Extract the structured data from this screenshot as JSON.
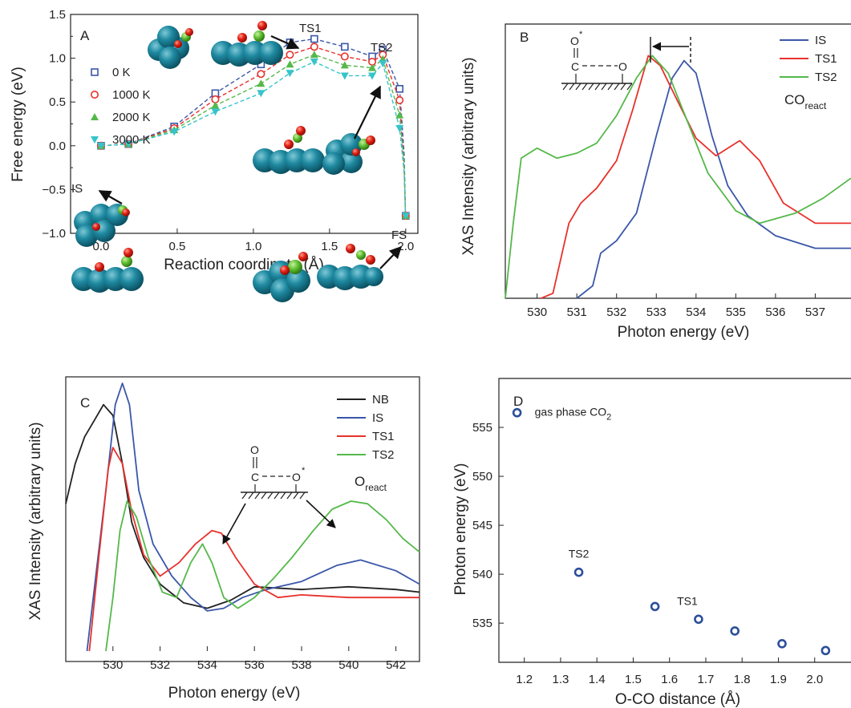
{
  "colors": {
    "blue": "#3a57a8",
    "red": "#e8312b",
    "green": "#55b84a",
    "cyan": "#36c4c9",
    "black": "#222222",
    "navy_marker": "#2b4f9a"
  },
  "chart_data": [
    {
      "id": "A",
      "type": "line",
      "panel_label": "A",
      "xlabel": "Reaction coordinate (Å)",
      "ylabel": "Free energy (eV)",
      "xlim": [
        -0.2,
        2.08
      ],
      "ylim": [
        -1.0,
        1.5
      ],
      "xticks": [
        "0.0",
        "0.5",
        "1.0",
        "1.5",
        "2.0"
      ],
      "yticks": [
        "−1.0",
        "−0.5",
        "0.0",
        "0.5",
        "1.0",
        "1.5"
      ],
      "x": [
        0.0,
        0.18,
        0.48,
        0.75,
        1.05,
        1.24,
        1.4,
        1.6,
        1.78,
        1.85,
        1.96,
        1.99,
        1.995,
        1.998,
        2.0
      ],
      "series": [
        {
          "name": "0 K",
          "marker": "square",
          "color": "blue",
          "values": [
            0.0,
            0.02,
            0.22,
            0.6,
            0.93,
            1.18,
            1.22,
            1.13,
            1.02,
            1.1,
            0.65,
            -0.1,
            -0.5,
            -0.75,
            -0.8
          ]
        },
        {
          "name": "1000 K",
          "marker": "circle",
          "color": "red",
          "values": [
            0.0,
            0.02,
            0.2,
            0.53,
            0.82,
            1.04,
            1.13,
            1.02,
            0.96,
            1.04,
            0.52,
            -0.31,
            -0.55,
            -0.75,
            -0.8
          ]
        },
        {
          "name": "2000 K",
          "marker": "triangle-up",
          "color": "green",
          "values": [
            0.0,
            0.02,
            0.18,
            0.46,
            0.71,
            0.93,
            1.04,
            0.92,
            0.89,
            0.99,
            0.35,
            -0.2,
            -0.55,
            -0.76,
            -0.8
          ]
        },
        {
          "name": "3000 K",
          "marker": "triangle-down",
          "color": "cyan",
          "values": [
            0.0,
            0.02,
            0.16,
            0.39,
            0.6,
            0.83,
            0.96,
            0.8,
            0.8,
            0.94,
            0.2,
            -0.3,
            -0.6,
            -0.78,
            -0.8
          ]
        }
      ],
      "annotations": [
        "TS1",
        "TS2",
        "IS",
        "FS"
      ]
    },
    {
      "id": "B",
      "type": "line",
      "panel_label": "B",
      "xlabel": "Photon energy (eV)",
      "ylabel": "XAS Intensity (arbitrary units)",
      "xlim": [
        529.2,
        537.9
      ],
      "xticks": [
        "530",
        "531",
        "532",
        "533",
        "534",
        "535",
        "536",
        "537"
      ],
      "legend_position": "top-right",
      "inset_text": "CO",
      "inset_subscript": "react",
      "molecule_label_O_top": "O",
      "molecule_label_C": "C",
      "molecule_label_O_right": "O",
      "molecule_star": "*",
      "series": [
        {
          "name": "IS",
          "color": "blue",
          "x": [
            531.0,
            531.4,
            531.6,
            532.0,
            532.5,
            533.0,
            533.4,
            533.7,
            534.0,
            534.4,
            534.8,
            535.3,
            536.0,
            537.0,
            537.9
          ],
          "values": [
            0.0,
            0.05,
            0.18,
            0.23,
            0.34,
            0.65,
            0.88,
            0.95,
            0.9,
            0.65,
            0.45,
            0.33,
            0.25,
            0.2,
            0.2
          ]
        },
        {
          "name": "TS1",
          "color": "red",
          "x": [
            530.1,
            530.4,
            530.8,
            531.1,
            531.5,
            532.0,
            532.4,
            532.8,
            533.1,
            533.5,
            534.0,
            534.5,
            535.1,
            535.6,
            536.2,
            537.0,
            537.9
          ],
          "values": [
            0.0,
            0.02,
            0.3,
            0.38,
            0.44,
            0.55,
            0.75,
            0.97,
            0.93,
            0.8,
            0.64,
            0.57,
            0.63,
            0.55,
            0.38,
            0.3,
            0.3
          ]
        },
        {
          "name": "TS2",
          "color": "green",
          "x": [
            529.2,
            529.4,
            529.6,
            530.0,
            530.5,
            531.0,
            531.5,
            532.0,
            532.5,
            532.9,
            533.3,
            533.8,
            534.3,
            535.0,
            535.6,
            536.5,
            537.2,
            537.9
          ],
          "values": [
            0.0,
            0.3,
            0.56,
            0.6,
            0.56,
            0.58,
            0.62,
            0.73,
            0.88,
            0.97,
            0.9,
            0.7,
            0.5,
            0.35,
            0.3,
            0.34,
            0.4,
            0.48
          ]
        }
      ]
    },
    {
      "id": "C",
      "type": "line",
      "panel_label": "C",
      "xlabel": "Photon energy (eV)",
      "ylabel": "XAS Intensity (arbitrary units)",
      "xlim": [
        528.0,
        543.0
      ],
      "xticks": [
        "530",
        "532",
        "534",
        "536",
        "538",
        "540",
        "542"
      ],
      "legend_position": "top-right",
      "inset_text": "O",
      "inset_subscript": "react",
      "molecule_label_O_top": "O",
      "molecule_label_C": "C",
      "molecule_label_O_right": "O",
      "molecule_star": "*",
      "series": [
        {
          "name": "NB",
          "color": "black",
          "x": [
            528.0,
            528.4,
            528.8,
            529.2,
            529.6,
            530.0,
            530.4,
            530.8,
            531.3,
            532.0,
            533.0,
            534.0,
            535.0,
            536.0,
            538.0,
            540.0,
            542.0,
            543.0
          ],
          "values": [
            0.55,
            0.7,
            0.8,
            0.86,
            0.92,
            0.88,
            0.7,
            0.48,
            0.35,
            0.25,
            0.18,
            0.16,
            0.19,
            0.24,
            0.23,
            0.24,
            0.23,
            0.22
          ]
        },
        {
          "name": "IS",
          "color": "blue",
          "x": [
            528.9,
            529.3,
            529.7,
            530.1,
            530.4,
            530.7,
            531.1,
            531.7,
            532.5,
            533.3,
            534.0,
            534.7,
            535.5,
            536.5,
            538.0,
            539.5,
            540.5,
            542.0,
            543.0
          ],
          "values": [
            0.0,
            0.3,
            0.6,
            0.92,
            1.0,
            0.92,
            0.6,
            0.4,
            0.28,
            0.2,
            0.15,
            0.16,
            0.2,
            0.23,
            0.26,
            0.32,
            0.34,
            0.3,
            0.25
          ]
        },
        {
          "name": "TS1",
          "color": "red",
          "x": [
            529.0,
            529.4,
            529.8,
            530.0,
            530.4,
            530.8,
            531.3,
            532.0,
            532.8,
            533.5,
            534.2,
            534.6,
            535.2,
            536.0,
            537.0,
            538.0,
            540.0,
            542.0,
            543.0
          ],
          "values": [
            0.0,
            0.35,
            0.68,
            0.76,
            0.7,
            0.52,
            0.36,
            0.28,
            0.33,
            0.4,
            0.45,
            0.44,
            0.35,
            0.25,
            0.2,
            0.21,
            0.2,
            0.2,
            0.2
          ]
        },
        {
          "name": "TS2",
          "color": "green",
          "x": [
            529.7,
            530.0,
            530.3,
            530.6,
            531.0,
            531.5,
            532.1,
            532.7,
            533.3,
            533.8,
            534.2,
            534.7,
            535.3,
            536.0,
            536.8,
            537.6,
            538.5,
            539.3,
            540.1,
            540.8,
            541.6,
            542.3,
            543.0
          ],
          "values": [
            0.0,
            0.2,
            0.45,
            0.56,
            0.5,
            0.35,
            0.22,
            0.2,
            0.33,
            0.4,
            0.33,
            0.2,
            0.16,
            0.2,
            0.27,
            0.35,
            0.45,
            0.53,
            0.56,
            0.55,
            0.49,
            0.42,
            0.37
          ]
        }
      ]
    },
    {
      "id": "D",
      "type": "scatter",
      "panel_label": "D",
      "xlabel": "O-CO distance (Å)",
      "ylabel": "Photon energy (eV)",
      "xlim": [
        1.13,
        2.1
      ],
      "ylim": [
        531.0,
        560.0
      ],
      "xticks": [
        "1.2",
        "1.3",
        "1.4",
        "1.5",
        "1.6",
        "1.7",
        "1.8",
        "1.9",
        "2.0"
      ],
      "yticks": [
        "535",
        "540",
        "545",
        "550",
        "555"
      ],
      "x": [
        1.18,
        1.35,
        1.56,
        1.68,
        1.78,
        1.91,
        2.03
      ],
      "values": [
        556.5,
        540.2,
        536.7,
        535.4,
        534.2,
        532.9,
        532.2
      ],
      "point_labels": [
        "gas phase CO",
        "TS2",
        "",
        "TS1",
        "",
        "",
        ""
      ],
      "gas_label_subscript": "2"
    }
  ]
}
